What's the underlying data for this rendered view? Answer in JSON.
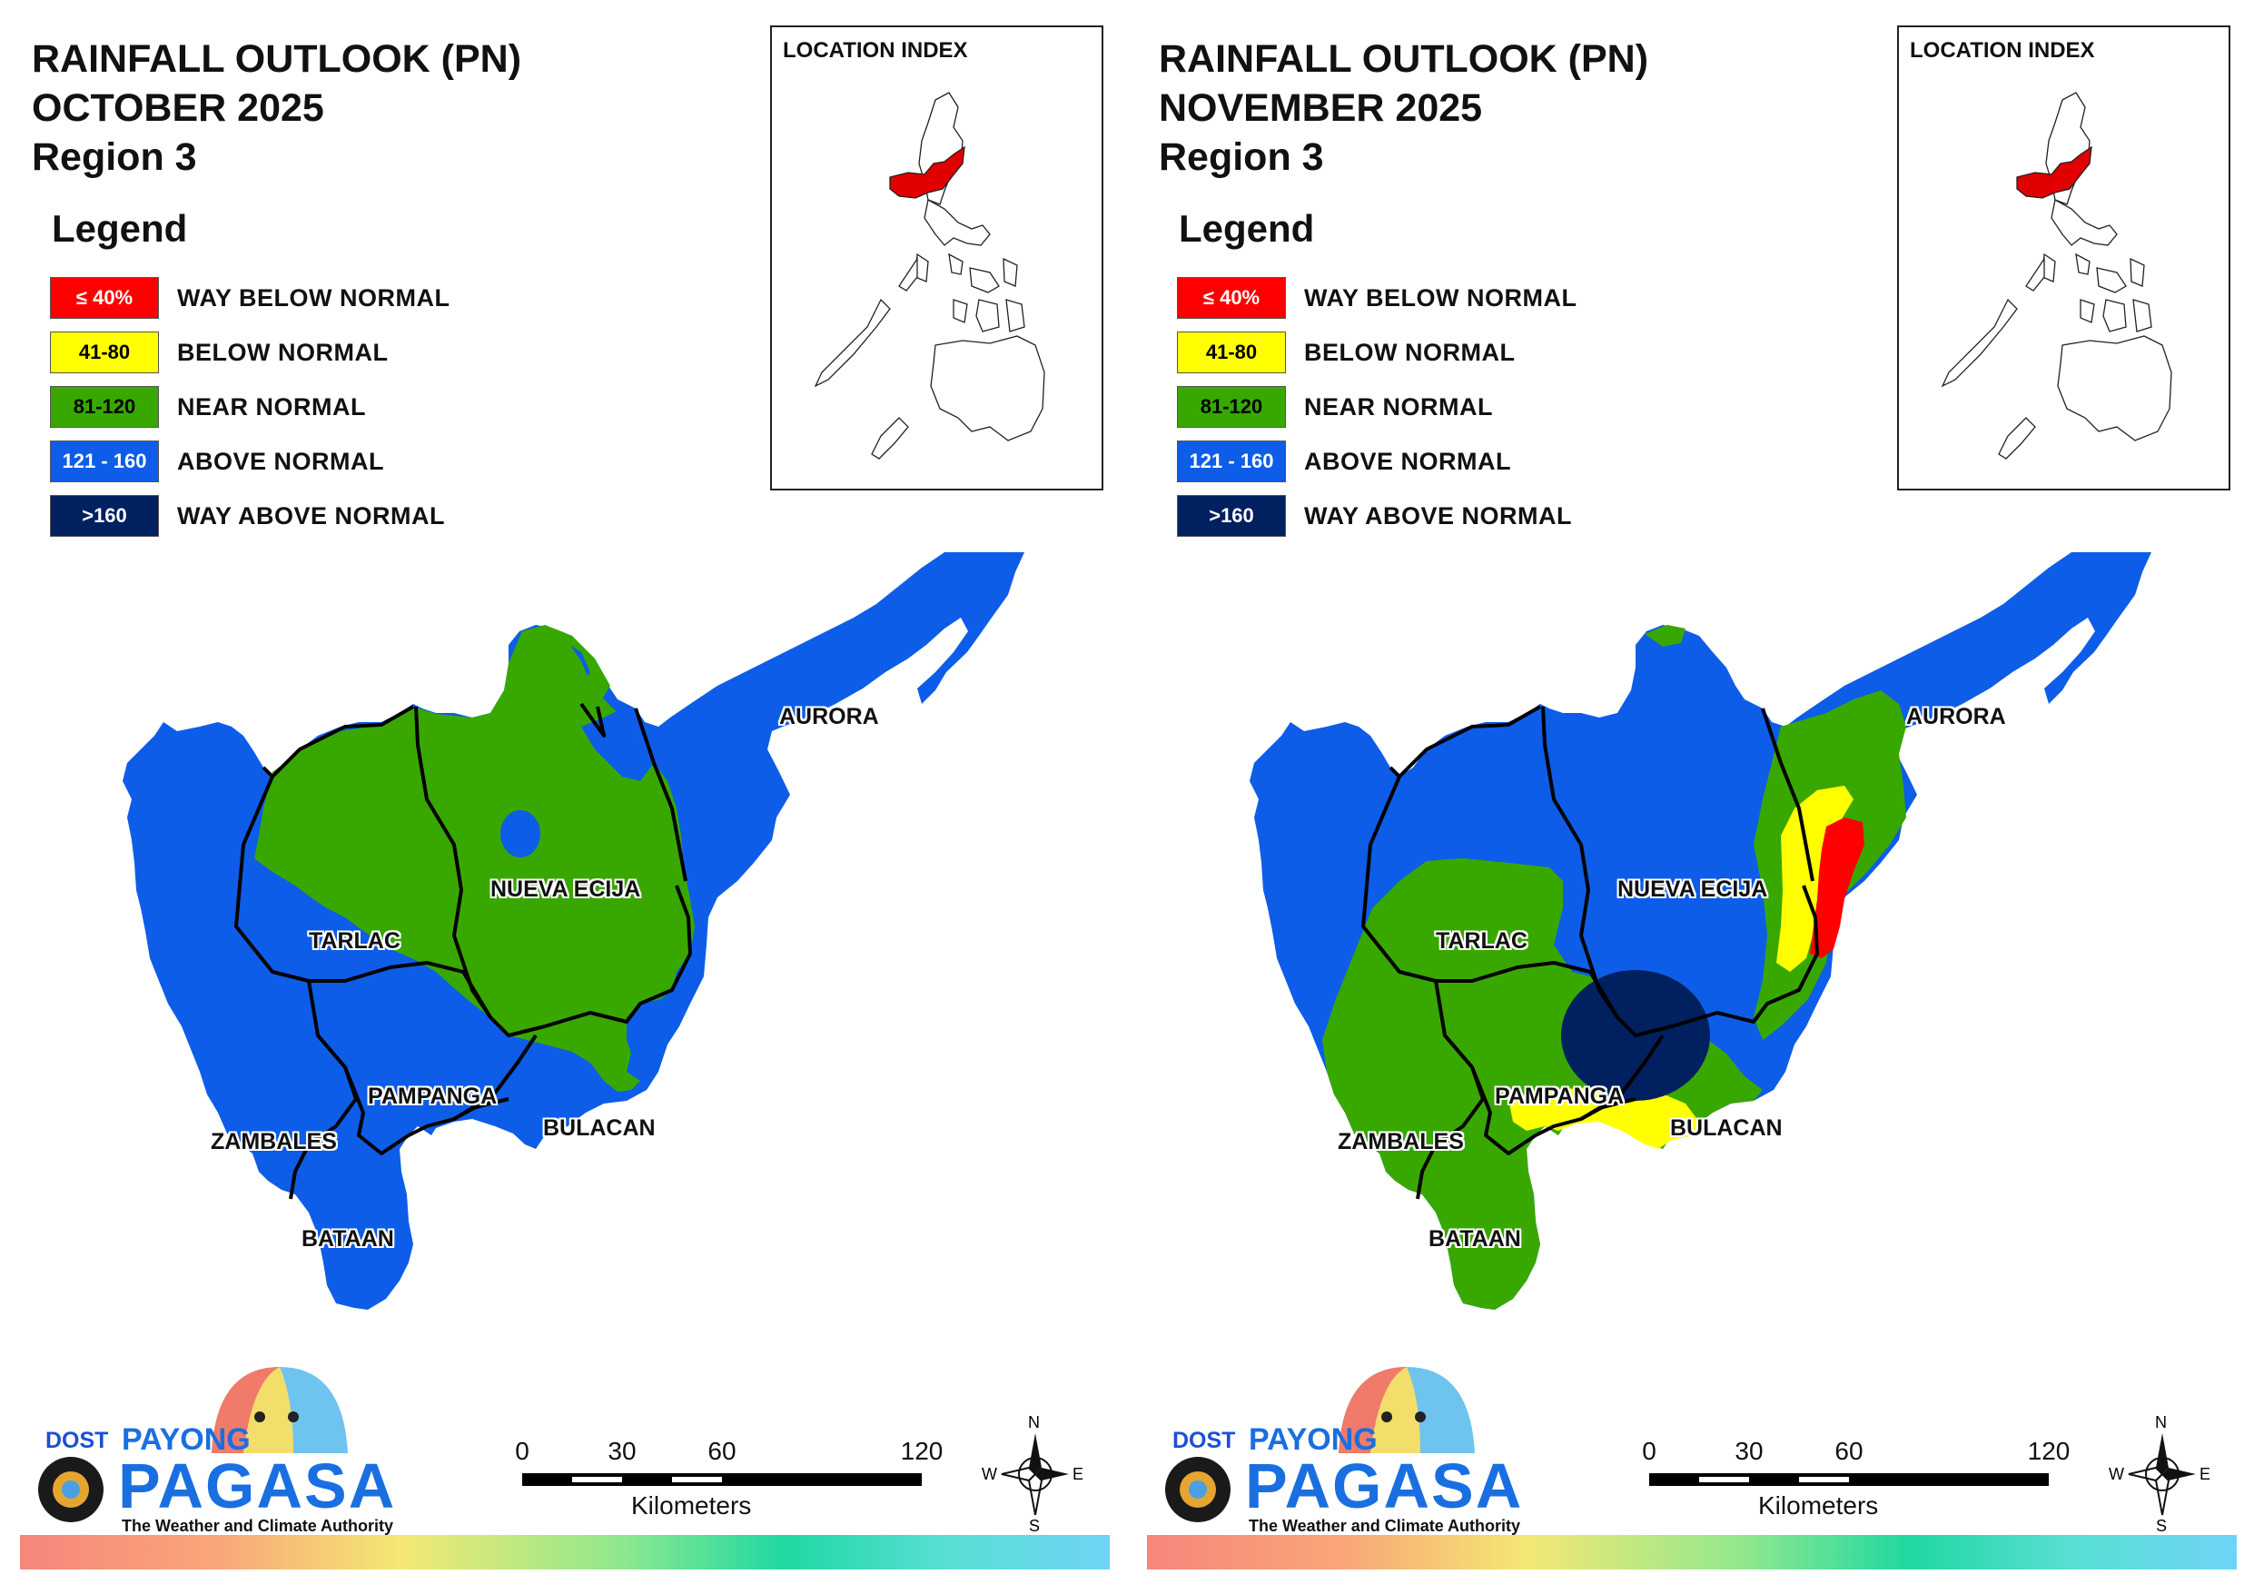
{
  "colors": {
    "way_below": "#ff0000",
    "below": "#ffff00",
    "near": "#38a800",
    "above": "#0d5de8",
    "way_above": "#002060",
    "boundary": "#000000"
  },
  "legend": {
    "heading": "Legend",
    "items": [
      {
        "range": "≤ 40%",
        "label": "WAY BELOW NORMAL",
        "color": "#ff0000",
        "text_color": "#ffffff"
      },
      {
        "range": "41-80",
        "label": "BELOW NORMAL",
        "color": "#ffff00",
        "text_color": "#000000"
      },
      {
        "range": "81-120",
        "label": "NEAR NORMAL",
        "color": "#38a800",
        "text_color": "#000000"
      },
      {
        "range": "121 - 160",
        "label": "ABOVE NORMAL",
        "color": "#0d5de8",
        "text_color": "#ffffff"
      },
      {
        "range": ">160",
        "label": "WAY ABOVE NORMAL",
        "color": "#002060",
        "text_color": "#ffffff"
      }
    ]
  },
  "location_index": {
    "title": "LOCATION INDEX"
  },
  "panels": [
    {
      "title_line1": "RAINFALL OUTLOOK (PN)",
      "title_line2": "OCTOBER 2025",
      "title_line3": "Region 3",
      "provinces": {
        "aurora": {
          "name": "AURORA",
          "category": "ABOVE NORMAL"
        },
        "nueva_ecija": {
          "name": "NUEVA ECIJA",
          "category": "NEAR NORMAL"
        },
        "tarlac": {
          "name": "TARLAC",
          "category": "NEAR NORMAL"
        },
        "pampanga": {
          "name": "PAMPANGA",
          "category": "ABOVE NORMAL"
        },
        "bulacan": {
          "name": "BULACAN",
          "category": "ABOVE NORMAL"
        },
        "zambales": {
          "name": "ZAMBALES",
          "category": "ABOVE NORMAL"
        },
        "bataan": {
          "name": "BATAAN",
          "category": "ABOVE NORMAL"
        }
      }
    },
    {
      "title_line1": "RAINFALL OUTLOOK (PN)",
      "title_line2": "NOVEMBER 2025",
      "title_line3": "Region 3",
      "provinces": {
        "aurora": {
          "name": "AURORA",
          "category": "ABOVE NORMAL"
        },
        "nueva_ecija": {
          "name": "NUEVA ECIJA",
          "category": "ABOVE NORMAL"
        },
        "tarlac": {
          "name": "TARLAC",
          "category": "NEAR NORMAL"
        },
        "pampanga": {
          "name": "PAMPANGA",
          "category": "NEAR NORMAL"
        },
        "bulacan": {
          "name": "BULACAN",
          "category": "NEAR NORMAL"
        },
        "zambales": {
          "name": "ZAMBALES",
          "category": "NEAR NORMAL"
        },
        "bataan": {
          "name": "BATAAN",
          "category": "NEAR NORMAL"
        }
      }
    }
  ],
  "scale_bar": {
    "ticks": [
      "0",
      "30",
      "60",
      "120"
    ],
    "unit": "Kilometers"
  },
  "compass": {
    "n": "N",
    "s": "S",
    "e": "E",
    "w": "W"
  },
  "logo": {
    "dost": "DOST",
    "payong": "PAYONG",
    "pagasa": "PAGASA",
    "tagline": "The Weather and Climate Authority"
  }
}
